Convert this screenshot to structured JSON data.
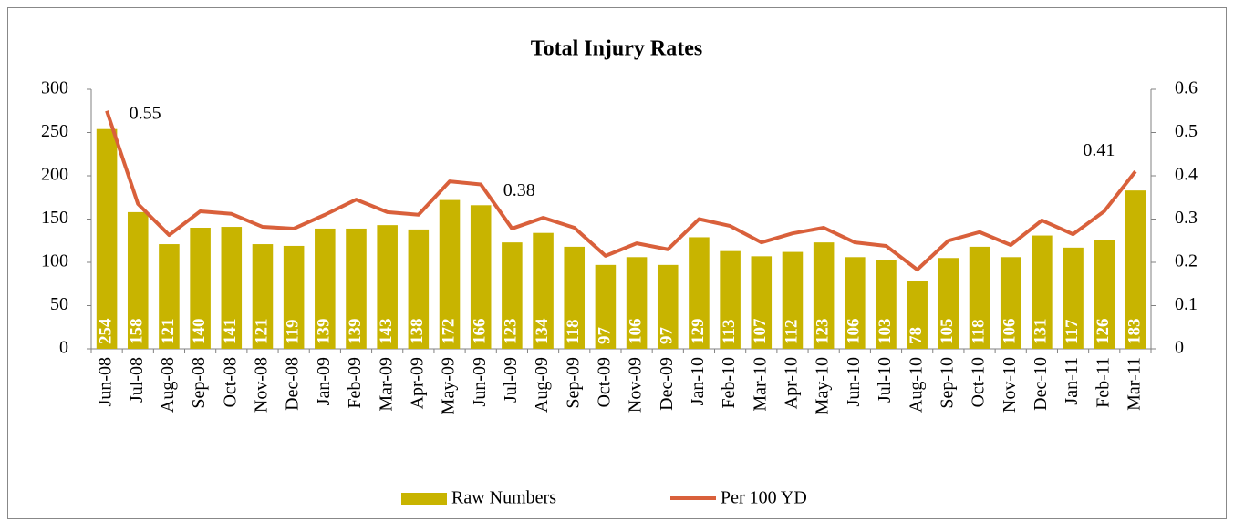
{
  "chart_data": {
    "type": "bar-line",
    "title": "Total Injury Rates",
    "categories": [
      "Jun-08",
      "Jul-08",
      "Aug-08",
      "Sep-08",
      "Oct-08",
      "Nov-08",
      "Dec-08",
      "Jan-09",
      "Feb-09",
      "Mar-09",
      "Apr-09",
      "May-09",
      "Jun-09",
      "Jul-09",
      "Aug-09",
      "Sep-09",
      "Oct-09",
      "Nov-09",
      "Dec-09",
      "Jan-10",
      "Feb-10",
      "Mar-10",
      "Apr-10",
      "May-10",
      "Jun-10",
      "Jul-10",
      "Aug-10",
      "Sep-10",
      "Oct-10",
      "Nov-10",
      "Dec-10",
      "Jan-11",
      "Feb-11",
      "Mar-11"
    ],
    "series": [
      {
        "name": "Raw Numbers",
        "color": "#c8b400",
        "values": [
          254,
          158,
          121,
          140,
          141,
          121,
          119,
          139,
          139,
          143,
          138,
          172,
          166,
          123,
          134,
          118,
          97,
          106,
          97,
          129,
          113,
          107,
          112,
          123,
          106,
          103,
          78,
          105,
          118,
          106,
          131,
          117,
          126,
          183
        ]
      },
      {
        "name": "Per 100 YD",
        "color": "#d9603b",
        "axis": "y2",
        "values": [
          0.55,
          0.335,
          0.263,
          0.318,
          0.312,
          0.282,
          0.278,
          0.31,
          0.345,
          0.316,
          0.31,
          0.387,
          0.38,
          0.278,
          0.303,
          0.28,
          0.215,
          0.244,
          0.23,
          0.3,
          0.284,
          0.246,
          0.267,
          0.28,
          0.246,
          0.238,
          0.183,
          0.25,
          0.27,
          0.24,
          0.297,
          0.265,
          0.318,
          0.41
        ],
        "value_labels": [
          "0.55",
          null,
          null,
          null,
          null,
          null,
          null,
          null,
          null,
          null,
          null,
          null,
          "0.38",
          null,
          null,
          null,
          null,
          null,
          null,
          null,
          null,
          null,
          null,
          null,
          null,
          null,
          null,
          null,
          null,
          null,
          null,
          null,
          null,
          "0.41"
        ]
      }
    ],
    "ylim": [
      0,
      300
    ],
    "yticks": [
      0,
      50,
      100,
      150,
      200,
      250,
      300
    ],
    "y2lim": [
      0,
      0.6
    ],
    "y2ticks": [
      0,
      0.1,
      0.2,
      0.3,
      0.4,
      0.5,
      0.6
    ],
    "legend": "bottom"
  }
}
